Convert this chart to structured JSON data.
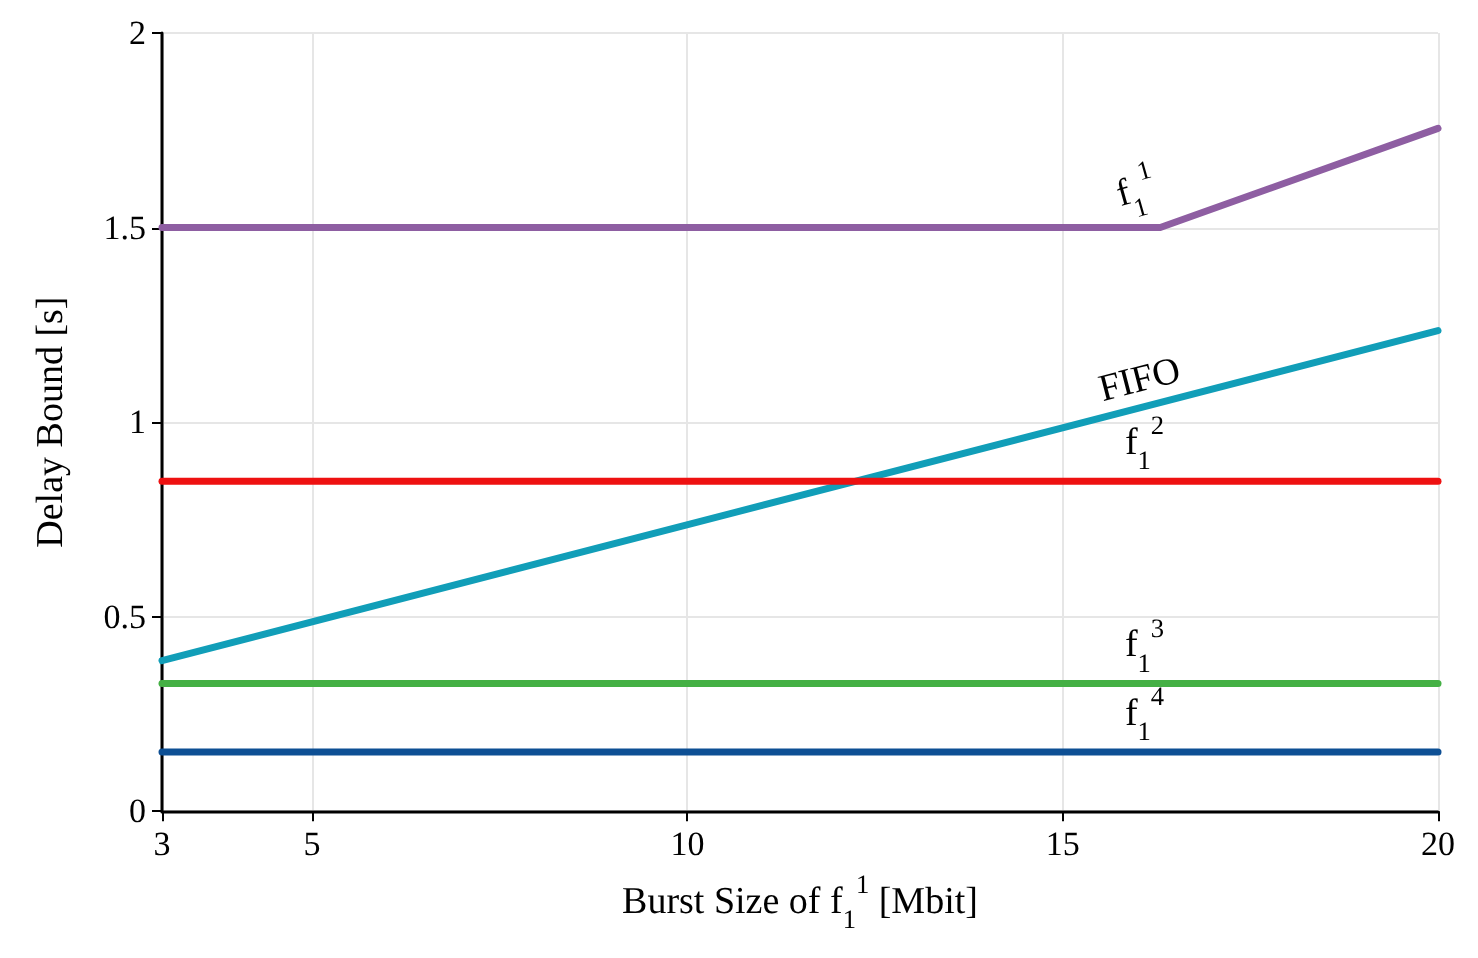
{
  "chart_data": {
    "type": "line",
    "xlabel": "Burst Size of f$_{1}$$^{1}$ [Mbit]",
    "ylabel": "Delay Bound [s]",
    "xlim": [
      3,
      20
    ],
    "xticks": [
      3,
      5,
      10,
      15,
      20
    ],
    "ylim": [
      0,
      2
    ],
    "yticks": [
      0,
      0.5,
      1,
      1.5,
      2
    ],
    "grid": true,
    "marker": "none",
    "line_style": "solid",
    "series": [
      {
        "name": "f$_{1}$$^{1}$",
        "color": "#8e5ea2",
        "x": [
          3,
          16.3,
          20
        ],
        "values": [
          1.5,
          1.5,
          1.755
        ]
      },
      {
        "name": "FIFO",
        "color": "#119eb8",
        "x": [
          3,
          20
        ],
        "values": [
          0.387,
          1.235
        ]
      },
      {
        "name": "f$_{1}$$^{2}$",
        "color": "#ee1111",
        "x": [
          3,
          20
        ],
        "values": [
          0.848,
          0.848
        ]
      },
      {
        "name": "f$_{1}$$^{3}$",
        "color": "#44b044",
        "x": [
          3,
          20
        ],
        "values": [
          0.328,
          0.328
        ]
      },
      {
        "name": "f$_{1}$$^{4}$",
        "color": "#0d4f94",
        "x": [
          3,
          20
        ],
        "values": [
          0.152,
          0.152
        ]
      }
    ]
  }
}
